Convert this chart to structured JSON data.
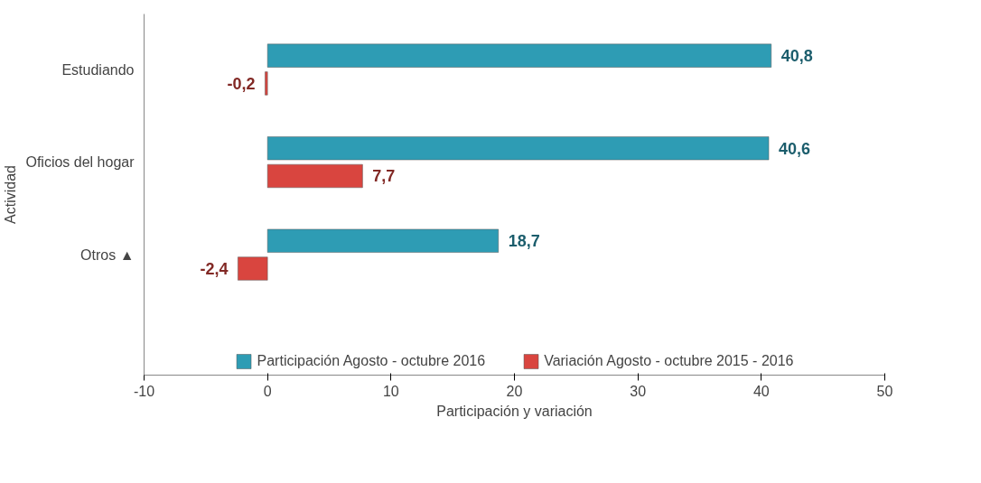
{
  "chart_data": {
    "type": "bar",
    "orientation": "horizontal",
    "categories": [
      "Estudiando",
      "Oficios del hogar",
      "Otros ▲"
    ],
    "series": [
      {
        "name": "Participación Agosto - octubre 2016",
        "color": "#2e9cb4",
        "values": [
          40.8,
          40.6,
          18.7
        ],
        "value_labels": [
          "40,8",
          "40,6",
          "18,7"
        ]
      },
      {
        "name": "Variación Agosto - octubre 2015 - 2016",
        "color": "#d9453f",
        "values": [
          -0.2,
          7.7,
          -2.4
        ],
        "value_labels": [
          "-0,2",
          "7,7",
          "-2,4"
        ]
      }
    ],
    "xlim": [
      -10,
      50
    ],
    "xticks": [
      -10,
      0,
      10,
      20,
      30,
      40,
      50
    ],
    "xlabel": "Participación y variación",
    "ylabel": "Actividad",
    "legend": "bottom",
    "grid": false
  }
}
